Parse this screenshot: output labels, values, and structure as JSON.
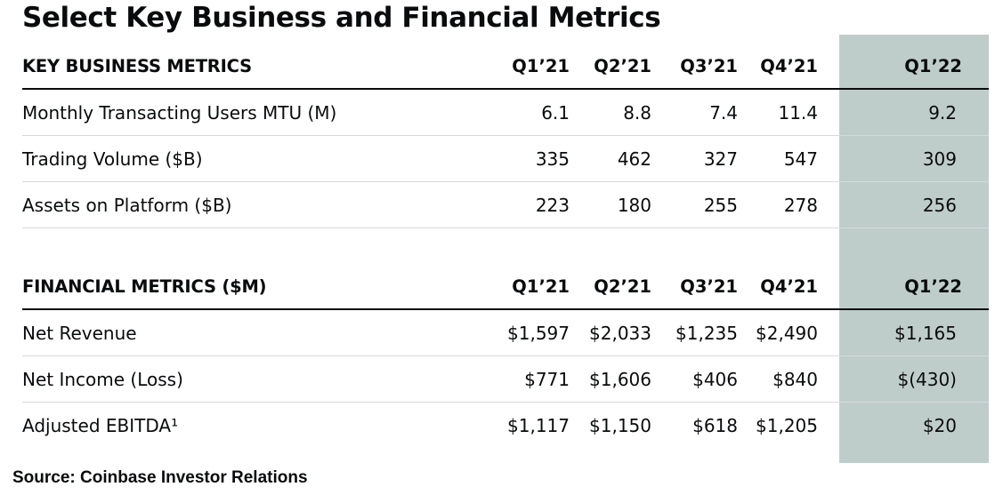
{
  "title": "Select Key Business and Financial Metrics",
  "accent_color": "#bfcdca",
  "key_business": {
    "header": "KEY BUSINESS METRICS",
    "quarters": [
      "Q1’21",
      "Q2’21",
      "Q3’21",
      "Q4’21",
      "Q1’22"
    ],
    "rows": [
      {
        "label": "Monthly Transacting Users MTU (M)",
        "values": [
          "6.1",
          "8.8",
          "7.4",
          "11.4",
          "9.2"
        ]
      },
      {
        "label": "Trading Volume ($B)",
        "values": [
          "335",
          "462",
          "327",
          "547",
          "309"
        ]
      },
      {
        "label": "Assets on Platform ($B)",
        "values": [
          "223",
          "180",
          "255",
          "278",
          "256"
        ]
      }
    ]
  },
  "financial": {
    "header": "FINANCIAL METRICS ($M)",
    "quarters": [
      "Q1’21",
      "Q2’21",
      "Q3’21",
      "Q4’21",
      "Q1’22"
    ],
    "rows": [
      {
        "label": "Net Revenue",
        "values": [
          "$1,597",
          "$2,033",
          "$1,235",
          "$2,490",
          "$1,165"
        ]
      },
      {
        "label": "Net Income (Loss)",
        "values": [
          "$771",
          "$1,606",
          "$406",
          "$840",
          "$(430)"
        ]
      },
      {
        "label": "Adjusted EBITDA¹",
        "values": [
          "$1,117",
          "$1,150",
          "$618",
          "$1,205",
          "$20"
        ]
      }
    ]
  },
  "source": "Source: Coinbase Investor Relations"
}
